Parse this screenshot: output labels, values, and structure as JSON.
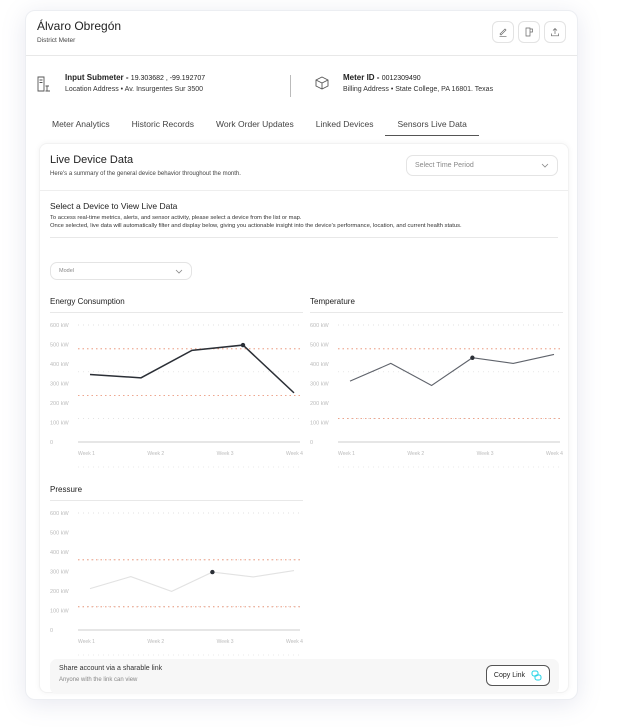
{
  "header": {
    "title": "Álvaro Obregón",
    "subtitle": "District Meter",
    "actions": [
      {
        "icon": "edit-icon"
      },
      {
        "icon": "receipt-icon"
      },
      {
        "icon": "upload-icon"
      }
    ]
  },
  "info": {
    "submeter_label": "Input Submeter -",
    "submeter_coords": "19.303682 , -99.192707",
    "location": "Location Address •  Av. Insurgentes Sur 3500",
    "meter_label": "Meter ID -",
    "meter_id": "0012309490",
    "billing": "Billing Address • State College, PA 16801. Texas"
  },
  "tabs": [
    {
      "label": "Meter Analytics"
    },
    {
      "label": "Historic Records"
    },
    {
      "label": "Work Order Updates"
    },
    {
      "label": "Linked Devices"
    },
    {
      "label": "Sensors Live Data",
      "active": true
    }
  ],
  "panel": {
    "title": "Live Device Data",
    "description": "Here's a summary of the general device behavior throughout the month.",
    "time_select": "Select Time Period",
    "section_title": "Select a Device to View Live Data",
    "section_line1": "To access real-time metrics, alerts, and sensor activity, please select a device from the list or map.",
    "section_line2": "Once selected, live data will automatically filter and display below, giving you actionable insight into the device's performance, location, and current health status.",
    "model_select": "Model"
  },
  "share": {
    "title": "Share account via a sharable link",
    "subtitle": "Anyone with the link can view",
    "button": "Copy Link"
  },
  "colors": {
    "threshold": "#e8896a",
    "grid": "#d8d8d8",
    "accent": "#22d3e6"
  },
  "chart_data": [
    {
      "type": "line",
      "title": "Energy Consumption",
      "yticks": [
        "600 kW",
        "500 kW",
        "400 kW",
        "300 kW",
        "200 kW",
        "100 kW",
        "0"
      ],
      "xticks": [
        "Week 1",
        "Week 2",
        "Week 3",
        "Week 4"
      ],
      "ylim": [
        0,
        600
      ],
      "values": [
        346,
        329,
        470,
        497,
        252
      ],
      "highlight_index": 3,
      "thresholds": [
        478,
        238
      ],
      "line_color": "#2b2f36"
    },
    {
      "type": "line",
      "title": "Temperature",
      "yticks": [
        "600 kW",
        "500 kW",
        "400 kW",
        "300 kW",
        "200 kW",
        "100 kW",
        "0"
      ],
      "xticks": [
        "Week 1",
        "Week 2",
        "Week 3",
        "Week 4"
      ],
      "ylim": [
        0,
        600
      ],
      "values": [
        312,
        403,
        290,
        432,
        403,
        449
      ],
      "highlight_index": 3,
      "thresholds": [
        478,
        120
      ],
      "line_color": "#5f636b"
    },
    {
      "type": "line",
      "title": "Pressure",
      "yticks": [
        "600 kW",
        "500 kW",
        "400 kW",
        "300 kW",
        "200 kW",
        "100 kW",
        "0"
      ],
      "xticks": [
        "Week 1",
        "Week 2",
        "Week 3",
        "Week 4"
      ],
      "ylim": [
        0,
        600
      ],
      "values": [
        212,
        274,
        198,
        297,
        272,
        305
      ],
      "highlight_index": 3,
      "thresholds": [
        360,
        119
      ],
      "line_color": "#e2e2e2"
    }
  ]
}
